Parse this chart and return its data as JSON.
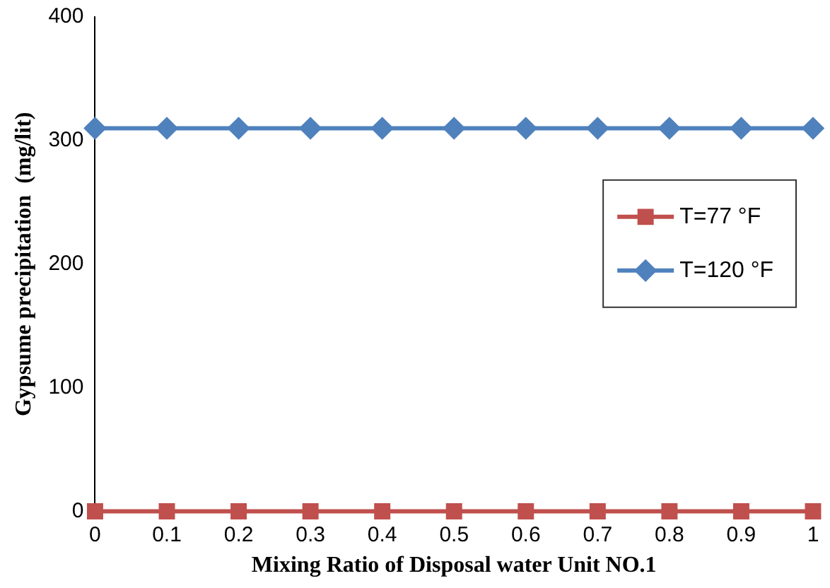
{
  "chart_data": {
    "type": "line",
    "xlabel": "Mixing Ratio of Disposal water Unit NO.1",
    "ylabel": "Gypsume precipitation  (mg/lit)",
    "x": [
      0,
      0.1,
      0.2,
      0.3,
      0.4,
      0.5,
      0.6,
      0.7,
      0.8,
      0.9,
      1
    ],
    "series": [
      {
        "name": "T=77 °F",
        "color": "#c0504d",
        "marker": "square",
        "values": [
          0,
          0,
          0,
          0,
          0,
          0,
          0,
          0,
          0,
          0,
          0
        ]
      },
      {
        "name": "T=120 °F",
        "color": "#4f81bd",
        "marker": "diamond",
        "values": [
          310,
          310,
          310,
          310,
          310,
          310,
          310,
          310,
          310,
          310,
          310
        ]
      }
    ],
    "xlim": [
      0,
      1
    ],
    "xticks": [
      0,
      0.1,
      0.2,
      0.3,
      0.4,
      0.5,
      0.6,
      0.7,
      0.8,
      0.9,
      1
    ],
    "ylim": [
      0,
      400
    ],
    "yticks": [
      0,
      100,
      200,
      300,
      400
    ],
    "grid": false,
    "legend": "right",
    "line_style": "solid"
  }
}
